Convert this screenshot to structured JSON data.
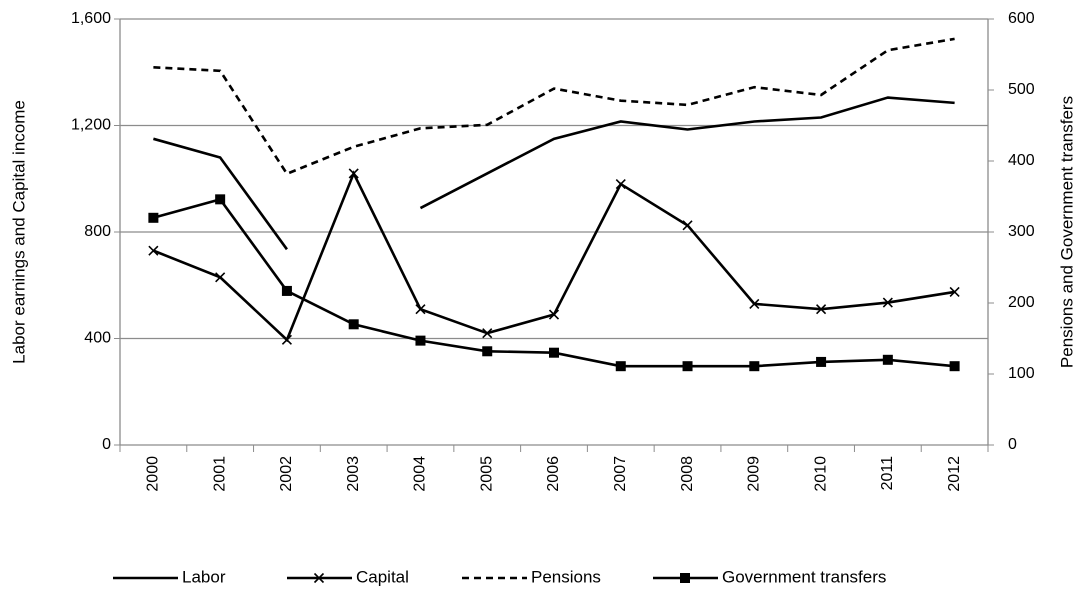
{
  "chart_data": {
    "type": "line",
    "categories": [
      "2000",
      "2001",
      "2002",
      "2003",
      "2004",
      "2005",
      "2006",
      "2007",
      "2008",
      "2009",
      "2010",
      "2011",
      "2012"
    ],
    "y_label": "Labor earnings and Capital income",
    "y2_label": "Pensions and Government transfers",
    "ylim": [
      0,
      1600
    ],
    "yticks": [
      0,
      400,
      800,
      {
        "value": 1200,
        "label": "1,200"
      },
      {
        "value": 1600,
        "label": "1,600"
      }
    ],
    "y2lim": [
      0,
      600
    ],
    "y2ticks": [
      0,
      100,
      200,
      300,
      400,
      500,
      600
    ],
    "grid": true,
    "legend": "bottom",
    "series": [
      {
        "name": "Labor",
        "color": "#000000",
        "line_style": "solid",
        "marker": "none",
        "values": [
          1150,
          1080,
          735,
          null,
          890,
          1020,
          1150,
          1215,
          1185,
          1215,
          1230,
          1305,
          1285
        ]
      },
      {
        "name": "Capital",
        "color": "#000000",
        "line_style": "solid",
        "marker": "x",
        "values": [
          730,
          630,
          395,
          1020,
          510,
          420,
          490,
          980,
          825,
          530,
          510,
          535,
          575
        ]
      },
      {
        "name": "Pensions",
        "color": "#000000",
        "line_style": "dashed",
        "marker": "none",
        "axis": "y2",
        "values": [
          532,
          527,
          382,
          420,
          446,
          451,
          502,
          485,
          479,
          504,
          493,
          556,
          572
        ]
      },
      {
        "name": "Government transfers",
        "color": "#000000",
        "line_style": "solid",
        "marker": "square",
        "axis": "y2",
        "values": [
          320,
          346,
          217,
          170,
          147,
          132,
          130,
          111,
          111,
          111,
          117,
          120,
          111
        ]
      }
    ]
  }
}
